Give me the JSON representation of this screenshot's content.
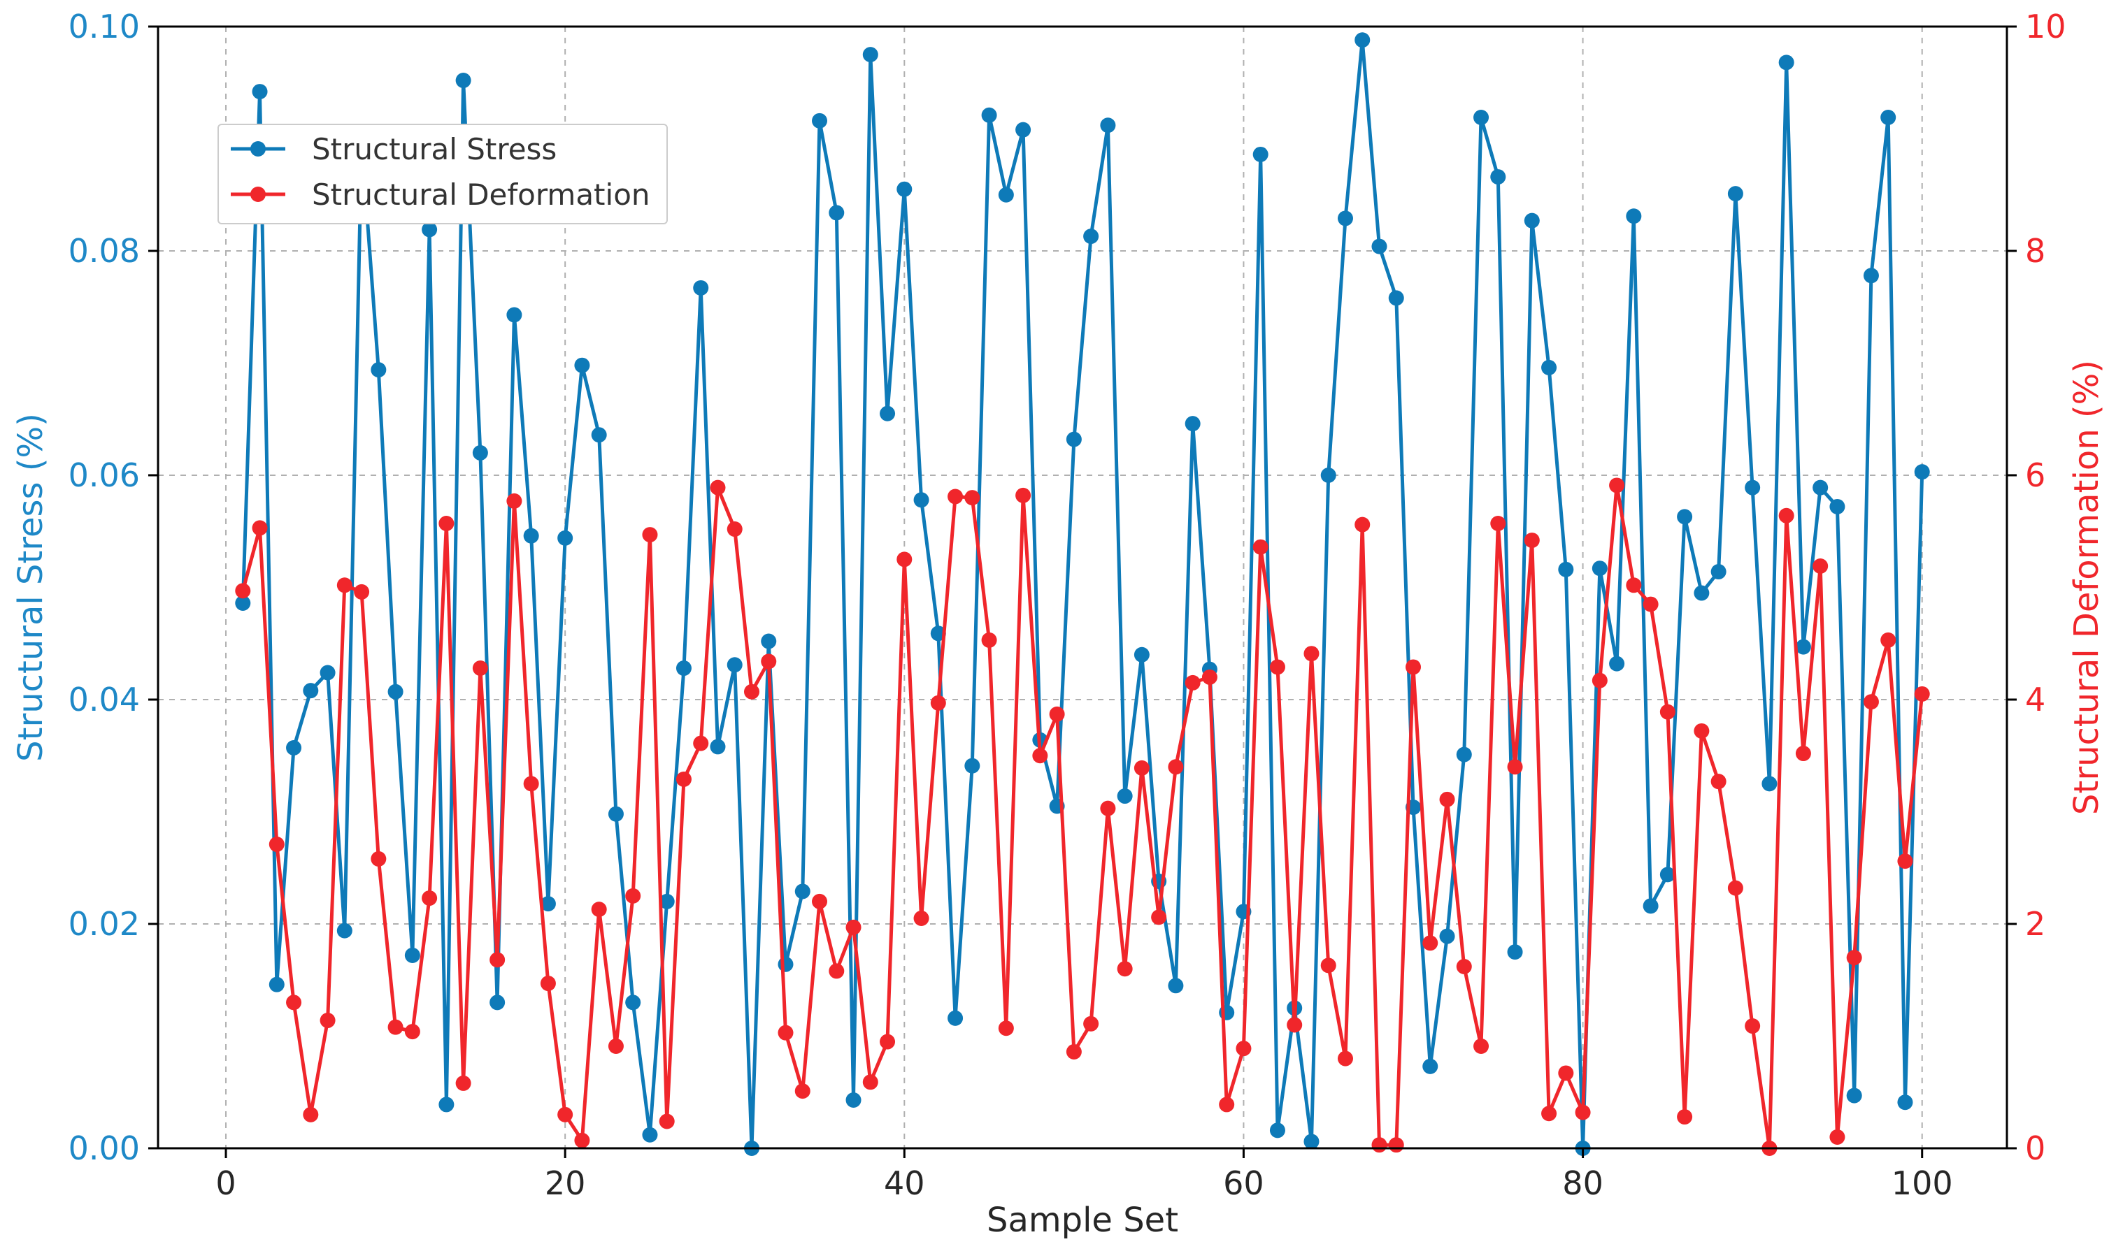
{
  "chart_data": {
    "type": "line",
    "title": "",
    "xlabel": "Sample Set",
    "ylabel_left": "Structural Stress (%)",
    "ylabel_right": "Structural Deformation (%)",
    "xlim": [
      -4,
      105
    ],
    "ylim_left": [
      0,
      0.1
    ],
    "ylim_right": [
      0,
      10
    ],
    "x_ticks": [
      0,
      20,
      40,
      60,
      80,
      100
    ],
    "x_tick_labels": [
      "0",
      "20",
      "40",
      "60",
      "80",
      "100"
    ],
    "y_ticks_left": [
      0,
      0.02,
      0.04,
      0.06,
      0.08,
      0.1
    ],
    "y_tick_labels_left": [
      "0.00",
      "0.02",
      "0.04",
      "0.06",
      "0.08",
      "0.10"
    ],
    "y_ticks_right": [
      0,
      2,
      4,
      6,
      8,
      10
    ],
    "y_tick_labels_right": [
      "0",
      "2",
      "4",
      "6",
      "8",
      "10"
    ],
    "grid": true,
    "legend_position": "top-left",
    "colors": {
      "stress": "#0e7ab8",
      "deformation": "#f0262b",
      "left_axis": "#1e88c7",
      "right_axis": "#f0262b"
    },
    "x": [
      1,
      2,
      3,
      4,
      5,
      6,
      7,
      8,
      9,
      10,
      11,
      12,
      13,
      14,
      15,
      16,
      17,
      18,
      19,
      20,
      21,
      22,
      23,
      24,
      25,
      26,
      27,
      28,
      29,
      30,
      31,
      32,
      33,
      34,
      35,
      36,
      37,
      38,
      39,
      40,
      41,
      42,
      43,
      44,
      45,
      46,
      47,
      48,
      49,
      50,
      51,
      52,
      53,
      54,
      55,
      56,
      57,
      58,
      59,
      60,
      61,
      62,
      63,
      64,
      65,
      66,
      67,
      68,
      69,
      70,
      71,
      72,
      73,
      74,
      75,
      76,
      77,
      78,
      79,
      80,
      81,
      82,
      83,
      84,
      85,
      86,
      87,
      88,
      89,
      90,
      91,
      92,
      93,
      94,
      95,
      96,
      97,
      98,
      99,
      100
    ],
    "series": [
      {
        "name": "Structural Stress",
        "axis": "left",
        "values": [
          0.0486,
          0.0942,
          0.0146,
          0.0357,
          0.0408,
          0.0424,
          0.0194,
          0.0897,
          0.0694,
          0.0407,
          0.0172,
          0.0819,
          0.0039,
          0.0952,
          0.062,
          0.013,
          0.0743,
          0.0546,
          0.0218,
          0.0544,
          0.0698,
          0.0636,
          0.0298,
          0.013,
          0.0012,
          0.022,
          0.0428,
          0.0767,
          0.0358,
          0.0431,
          0.0,
          0.0452,
          0.0164,
          0.0229,
          0.0916,
          0.0834,
          0.0043,
          0.0975,
          0.0655,
          0.0855,
          0.0578,
          0.0459,
          0.0116,
          0.0341,
          0.0921,
          0.085,
          0.0908,
          0.0364,
          0.0305,
          0.0632,
          0.0813,
          0.0912,
          0.0314,
          0.044,
          0.0238,
          0.0145,
          0.0646,
          0.0427,
          0.0121,
          0.0211,
          0.0886,
          0.0016,
          0.0125,
          0.0006,
          0.06,
          0.0829,
          0.0988,
          0.0804,
          0.0758,
          0.0304,
          0.0073,
          0.0189,
          0.0351,
          0.0919,
          0.0866,
          0.0175,
          0.0827,
          0.0696,
          0.0516,
          0.0,
          0.0517,
          0.0432,
          0.0831,
          0.0216,
          0.0244,
          0.0563,
          0.0495,
          0.0514,
          0.0851,
          0.0589,
          0.0325,
          0.0968,
          0.0447,
          0.0589,
          0.0572,
          0.0047,
          0.0778,
          0.0919,
          0.0041,
          0.0603
        ]
      },
      {
        "name": "Structural Deformation",
        "axis": "right",
        "values": [
          4.97,
          5.53,
          2.71,
          1.3,
          0.3,
          1.14,
          5.02,
          4.96,
          2.58,
          1.08,
          1.04,
          2.23,
          5.57,
          0.58,
          4.28,
          1.68,
          5.77,
          3.25,
          1.47,
          0.3,
          0.07,
          2.13,
          0.91,
          2.25,
          5.47,
          0.24,
          3.29,
          3.61,
          5.89,
          5.52,
          4.07,
          4.34,
          1.03,
          0.51,
          2.2,
          1.58,
          1.97,
          0.59,
          0.95,
          5.25,
          2.05,
          3.97,
          5.81,
          5.8,
          4.53,
          1.07,
          5.82,
          3.5,
          3.87,
          0.86,
          1.11,
          3.03,
          1.6,
          3.39,
          2.06,
          3.4,
          4.15,
          4.2,
          0.39,
          0.89,
          5.36,
          4.29,
          1.1,
          4.41,
          1.63,
          0.8,
          5.56,
          0.03,
          0.03,
          4.29,
          1.83,
          3.11,
          1.62,
          0.91,
          5.57,
          3.4,
          5.42,
          0.31,
          0.67,
          0.32,
          4.17,
          5.91,
          5.02,
          4.85,
          3.89,
          0.28,
          3.72,
          3.27,
          2.32,
          1.09,
          0.0,
          5.64,
          3.52,
          5.19,
          0.1,
          1.7,
          3.98,
          4.53,
          2.56,
          4.05
        ]
      }
    ]
  }
}
